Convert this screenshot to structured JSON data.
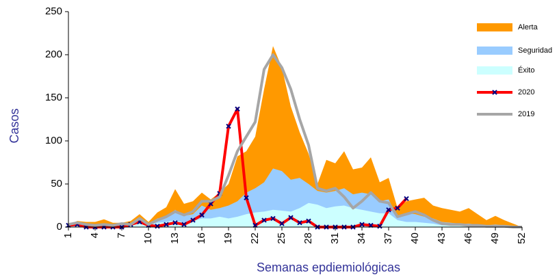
{
  "chart_data": {
    "type": "area-line",
    "y_label": "Casos",
    "x_label": "Semanas epdiemiológicas",
    "x": [
      1,
      2,
      3,
      4,
      5,
      6,
      7,
      8,
      9,
      10,
      11,
      12,
      13,
      14,
      15,
      16,
      17,
      18,
      19,
      20,
      21,
      22,
      23,
      24,
      25,
      26,
      27,
      28,
      29,
      30,
      31,
      32,
      33,
      34,
      35,
      36,
      37,
      38,
      39,
      40,
      41,
      42,
      43,
      44,
      45,
      46,
      47,
      48,
      49,
      50,
      51,
      52
    ],
    "xlim": [
      1,
      52
    ],
    "xticks": [
      1,
      4,
      7,
      10,
      13,
      16,
      19,
      22,
      25,
      28,
      31,
      34,
      37,
      40,
      43,
      46,
      49,
      52
    ],
    "ylim": [
      0,
      250
    ],
    "yticks": [
      0,
      50,
      100,
      150,
      200,
      250
    ],
    "series": [
      {
        "name": "Alerta",
        "kind": "area",
        "color": "#ff9900",
        "values": [
          3,
          7,
          6,
          6,
          9,
          5,
          5,
          7,
          15,
          6,
          17,
          23,
          44,
          27,
          30,
          40,
          32,
          40,
          50,
          82,
          88,
          105,
          160,
          210,
          185,
          140,
          110,
          85,
          50,
          78,
          74,
          88,
          67,
          69,
          81,
          52,
          57,
          22,
          30,
          32,
          34,
          25,
          22,
          20,
          18,
          22,
          15,
          8,
          13,
          8,
          4,
          0
        ]
      },
      {
        "name": "Seguridad",
        "kind": "area",
        "color": "#99ccff",
        "values": [
          2,
          5,
          4,
          3,
          4,
          3,
          3,
          4,
          10,
          4,
          10,
          12,
          20,
          13,
          15,
          25,
          20,
          22,
          25,
          30,
          40,
          45,
          52,
          68,
          65,
          55,
          57,
          50,
          42,
          40,
          42,
          45,
          38,
          40,
          38,
          30,
          32,
          12,
          16,
          15,
          12,
          10,
          6,
          5,
          4,
          4,
          3,
          2,
          3,
          2,
          1,
          0
        ]
      },
      {
        "name": "Éxito",
        "kind": "area",
        "color": "#ccffff",
        "values": [
          1,
          2,
          2,
          1,
          2,
          1,
          2,
          2,
          5,
          2,
          5,
          6,
          8,
          5,
          7,
          10,
          10,
          12,
          10,
          12,
          15,
          17,
          18,
          20,
          19,
          18,
          22,
          28,
          26,
          22,
          24,
          25,
          22,
          20,
          18,
          16,
          16,
          8,
          6,
          6,
          5,
          4,
          2,
          2,
          2,
          2,
          1,
          1,
          1,
          1,
          0,
          0
        ]
      },
      {
        "name": "2020",
        "kind": "line",
        "markers": true,
        "color": "#ff0000",
        "values": [
          2,
          3,
          0,
          0,
          0,
          0,
          0,
          3,
          6,
          2,
          1,
          3,
          5,
          3,
          8,
          14,
          27,
          39,
          117,
          137,
          34,
          2,
          8,
          10,
          4,
          11,
          5,
          7,
          0,
          0,
          0,
          0,
          0,
          3,
          2,
          1,
          20,
          22,
          33,
          null,
          null,
          null,
          null,
          null,
          null,
          null,
          null,
          null,
          null,
          null,
          null,
          null
        ]
      },
      {
        "name": "2019",
        "kind": "line",
        "markers": false,
        "color": "#a6a6a6",
        "values": [
          3,
          5,
          3,
          2,
          3,
          2,
          4,
          3,
          10,
          3,
          8,
          12,
          18,
          14,
          18,
          30,
          30,
          35,
          60,
          88,
          105,
          122,
          183,
          200,
          185,
          160,
          125,
          95,
          45,
          42,
          45,
          35,
          22,
          30,
          40,
          30,
          28,
          12,
          15,
          18,
          14,
          8,
          4,
          3,
          3,
          2,
          2,
          1,
          1,
          1,
          0,
          0
        ]
      }
    ]
  }
}
